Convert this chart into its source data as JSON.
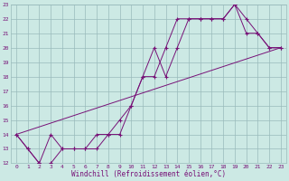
{
  "xlabel": "Windchill (Refroidissement éolien,°C)",
  "xlim": [
    -0.5,
    23.5
  ],
  "ylim": [
    12,
    23
  ],
  "yticks": [
    12,
    13,
    14,
    15,
    16,
    17,
    18,
    19,
    20,
    21,
    22,
    23
  ],
  "xticks": [
    0,
    1,
    2,
    3,
    4,
    5,
    6,
    7,
    8,
    9,
    10,
    11,
    12,
    13,
    14,
    15,
    16,
    17,
    18,
    19,
    20,
    21,
    22,
    23
  ],
  "background_color": "#cce9e4",
  "grid_color": "#99bbbb",
  "line_color": "#771177",
  "lines": [
    {
      "x": [
        0,
        1,
        2,
        3,
        4,
        5,
        6,
        7,
        8,
        9,
        10,
        11,
        12,
        13,
        14,
        15,
        16,
        17,
        18,
        19,
        20,
        21,
        22,
        23
      ],
      "y": [
        14,
        13,
        12,
        14,
        13,
        13,
        13,
        14,
        14,
        15,
        16,
        18,
        18,
        20,
        22,
        22,
        22,
        22,
        22,
        23,
        21,
        21,
        20,
        20
      ],
      "marker": true
    },
    {
      "x": [
        0,
        1,
        2,
        3,
        4,
        5,
        6,
        7,
        8,
        9,
        10,
        11,
        12,
        13,
        14,
        15,
        16,
        17,
        18,
        19,
        20,
        21,
        22,
        23
      ],
      "y": [
        14,
        13,
        12,
        12,
        13,
        13,
        13,
        13,
        14,
        14,
        16,
        18,
        20,
        18,
        20,
        22,
        22,
        22,
        22,
        23,
        22,
        21,
        20,
        20
      ],
      "marker": true
    },
    {
      "x": [
        0,
        23
      ],
      "y": [
        14,
        20
      ],
      "marker": false
    }
  ]
}
